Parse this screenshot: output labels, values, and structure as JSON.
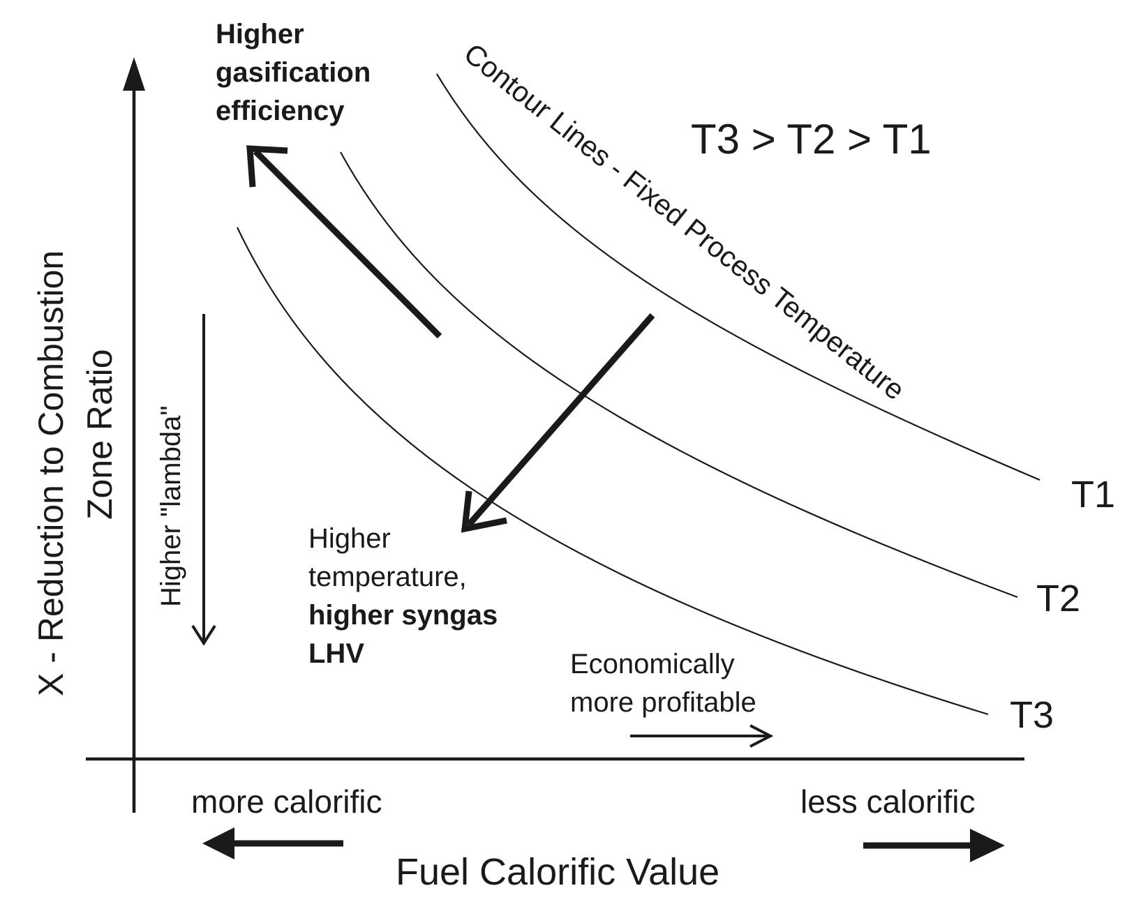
{
  "chart_data": {
    "type": "diagram",
    "title": "",
    "xlabel": "Fuel Calorific Value",
    "ylabel_line1": "X - Reduction to Combustion",
    "ylabel_line2": "Zone Ratio",
    "x_left_label": "more calorific",
    "x_right_label": "less calorific",
    "temperature_order": "T3 > T2 > T1",
    "contour_caption": "Contour Lines - Fixed Process Temperature",
    "series": [
      {
        "name": "T1"
      },
      {
        "name": "T2"
      },
      {
        "name": "T3"
      }
    ],
    "annotations": {
      "gasification": [
        "Higher",
        "gasification",
        "efficiency"
      ],
      "temperature": [
        "Higher",
        "temperature,",
        "higher syngas",
        "LHV"
      ],
      "lambda": "Higher \"lambda\"",
      "economic": [
        "Economically",
        "more profitable"
      ]
    }
  }
}
